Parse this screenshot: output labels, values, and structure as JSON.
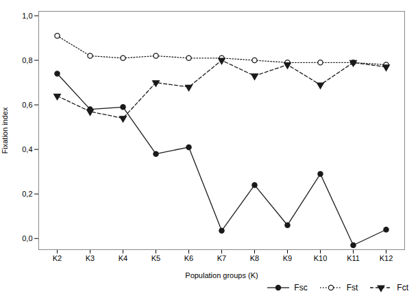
{
  "chart_data": {
    "type": "line",
    "xlabel": "Population groups (K)",
    "ylabel": "Fixation index",
    "categories": [
      "K2",
      "K3",
      "K4",
      "K5",
      "K6",
      "K7",
      "K8",
      "K9",
      "K10",
      "K11",
      "K12"
    ],
    "series": [
      {
        "name": "Fsc",
        "color": "#1a1a1a",
        "line_style": "solid",
        "marker": "circle",
        "values": [
          0.74,
          0.58,
          0.59,
          0.38,
          0.41,
          0.035,
          0.24,
          0.06,
          0.29,
          -0.03,
          0.04
        ]
      },
      {
        "name": "Fst",
        "color": "#1a1a1a",
        "line_style": "dotted",
        "marker": "circle-open",
        "values": [
          0.91,
          0.82,
          0.81,
          0.82,
          0.81,
          0.81,
          0.8,
          0.79,
          0.79,
          0.79,
          0.78
        ]
      },
      {
        "name": "Fct",
        "color": "#1a1a1a",
        "line_style": "dashed",
        "marker": "triangle-down",
        "values": [
          0.64,
          0.57,
          0.54,
          0.7,
          0.68,
          0.8,
          0.73,
          0.78,
          0.69,
          0.79,
          0.77
        ]
      }
    ],
    "ylim": [
      -0.05,
      1.02
    ],
    "yticks": [
      {
        "value": 0.0,
        "label": "0,0"
      },
      {
        "value": 0.2,
        "label": "0,2"
      },
      {
        "value": 0.4,
        "label": "0,4"
      },
      {
        "value": 0.6,
        "label": "0,6"
      },
      {
        "value": 0.8,
        "label": "0,8"
      },
      {
        "value": 1.0,
        "label": "1,0"
      }
    ],
    "grid": false,
    "legend": "lower right"
  }
}
